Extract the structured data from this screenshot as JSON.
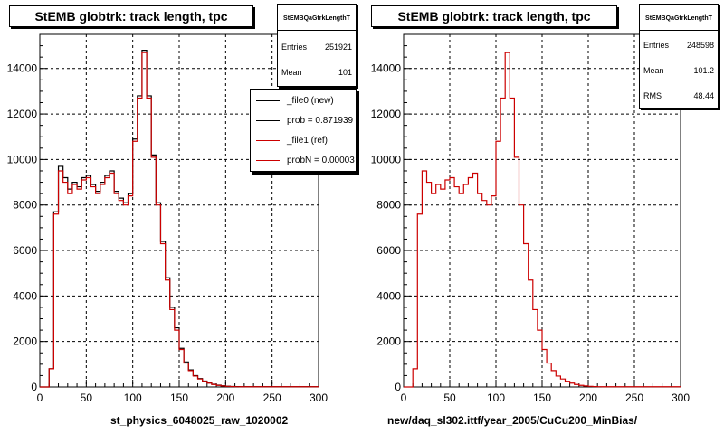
{
  "chart_data": [
    {
      "type": "histogram",
      "title": "StEMB globtrk: track length, tpc",
      "xlabel": "st_physics_6048025_raw_1020002",
      "ylabel": "",
      "xlim": [
        0,
        300
      ],
      "ylim": [
        0,
        15500
      ],
      "grid": true,
      "xticks": [
        0,
        50,
        100,
        150,
        200,
        250,
        300
      ],
      "yticks": [
        0,
        2000,
        4000,
        6000,
        8000,
        10000,
        12000,
        14000
      ],
      "bin_width": 5,
      "stats": {
        "name": "StEMBQaGtrkLengthT",
        "rows": [
          {
            "label": "Entries",
            "value": "251921"
          },
          {
            "label": "Mean",
            "value": "101"
          }
        ]
      },
      "legend": {
        "placement": "top-right",
        "entries": [
          {
            "label": "_file0 (new)",
            "color": "#000000"
          },
          {
            "label": "prob = 0.871939",
            "color": "#000000"
          },
          {
            "label": "_file1 (ref)",
            "color": "#cc0000"
          },
          {
            "label": "probN = 0.00003",
            "color": "#cc0000"
          }
        ]
      },
      "series": [
        {
          "name": "_file0 (new)",
          "color": "#000000",
          "values": [
            0,
            0,
            800,
            7700,
            9700,
            9200,
            8700,
            9000,
            8800,
            9200,
            9300,
            8900,
            8600,
            9000,
            9300,
            9500,
            8600,
            8300,
            8100,
            8500,
            10900,
            12800,
            14800,
            12800,
            10200,
            8100,
            6400,
            4800,
            3500,
            2600,
            1700,
            1100,
            750,
            500,
            370,
            260,
            180,
            120,
            80,
            50,
            30,
            20,
            15,
            10,
            10,
            10,
            10,
            10,
            10,
            10,
            10,
            10,
            10,
            10,
            10,
            10,
            10,
            10,
            10,
            10
          ]
        },
        {
          "name": "_file1 (ref)",
          "color": "#cc0000",
          "values": [
            0,
            0,
            800,
            7600,
            9500,
            9000,
            8500,
            8900,
            8700,
            9100,
            9200,
            8800,
            8500,
            8900,
            9200,
            9400,
            8500,
            8200,
            8000,
            8400,
            10800,
            12700,
            14700,
            12700,
            10100,
            8000,
            6300,
            4700,
            3400,
            2500,
            1650,
            1050,
            720,
            480,
            350,
            250,
            170,
            110,
            70,
            45,
            28,
            18,
            13,
            10,
            10,
            10,
            10,
            10,
            10,
            10,
            10,
            10,
            10,
            10,
            10,
            10,
            10,
            10,
            10,
            10
          ]
        }
      ]
    },
    {
      "type": "histogram",
      "title": "StEMB globtrk: track length, tpc",
      "xlabel": "new/daq_sl302.ittf/year_2005/CuCu200_MinBias/",
      "ylabel": "",
      "xlim": [
        0,
        300
      ],
      "ylim": [
        0,
        15500
      ],
      "grid": true,
      "xticks": [
        0,
        50,
        100,
        150,
        200,
        250,
        300
      ],
      "yticks": [
        0,
        2000,
        4000,
        6000,
        8000,
        10000,
        12000,
        14000
      ],
      "bin_width": 5,
      "stats": {
        "name": "StEMBQaGtrkLengthT",
        "rows": [
          {
            "label": "Entries",
            "value": "248598"
          },
          {
            "label": "Mean",
            "value": "101.2"
          },
          {
            "label": "RMS",
            "value": "48.44"
          }
        ]
      },
      "series": [
        {
          "name": "",
          "color": "#cc0000",
          "values": [
            0,
            0,
            800,
            7600,
            9500,
            9000,
            8500,
            8900,
            8700,
            9100,
            9200,
            8800,
            8500,
            8900,
            9200,
            9400,
            8500,
            8200,
            8000,
            8400,
            10800,
            12700,
            14700,
            12700,
            10100,
            8000,
            6300,
            4700,
            3400,
            2500,
            1650,
            1050,
            720,
            480,
            350,
            250,
            170,
            110,
            70,
            45,
            28,
            18,
            13,
            10,
            10,
            10,
            10,
            10,
            10,
            10,
            10,
            10,
            10,
            10,
            10,
            10,
            10,
            10,
            10,
            10
          ]
        }
      ]
    }
  ]
}
